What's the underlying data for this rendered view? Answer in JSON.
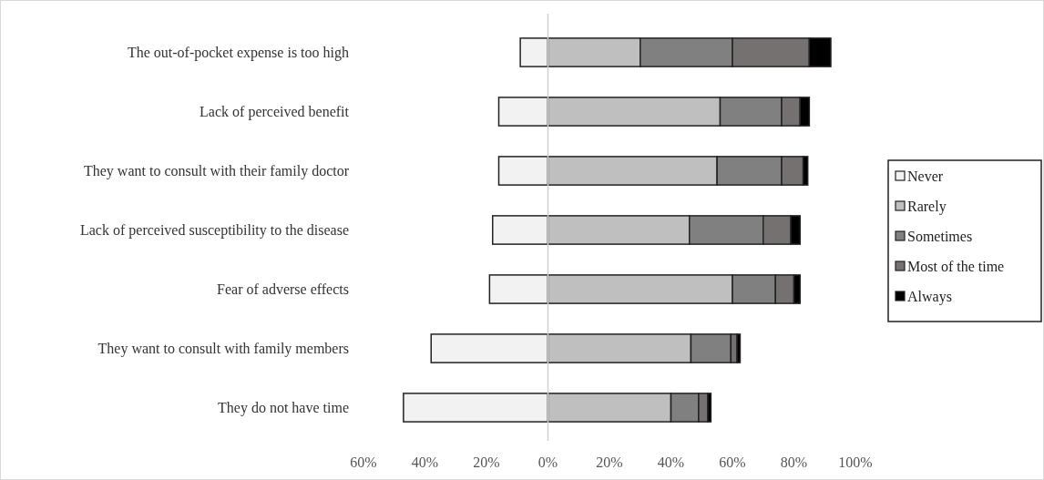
{
  "chart_data": {
    "type": "bar",
    "orientation": "horizontal",
    "stacked": true,
    "categories": [
      "The out-of-pocket expense is too high",
      "Lack of perceived benefit",
      "They want to consult with their family doctor",
      "Lack of perceived susceptibility to the disease",
      "Fear of adverse effects",
      "They want to consult with family members",
      "They do not have time"
    ],
    "series": [
      {
        "name": "Never",
        "color": "#f2f2f2",
        "values": [
          -9,
          -16,
          -16,
          -18,
          -19,
          -38,
          -47
        ]
      },
      {
        "name": "Rarely",
        "color": "#bfbfbf",
        "values": [
          30,
          56,
          55,
          46,
          60,
          46.5,
          40
        ]
      },
      {
        "name": "Sometimes",
        "color": "#808080",
        "values": [
          30,
          20,
          21,
          24,
          14,
          13,
          9
        ]
      },
      {
        "name": "Most of the time",
        "color": "#767171",
        "values": [
          25,
          6,
          7,
          9,
          6,
          2,
          3
        ]
      },
      {
        "name": "Always",
        "color": "#000000",
        "values": [
          7,
          3,
          1.5,
          3,
          2,
          1,
          1
        ]
      }
    ],
    "xlim": [
      -60,
      100
    ],
    "xticks": [
      {
        "value": -60,
        "label": "60%"
      },
      {
        "value": -40,
        "label": "40%"
      },
      {
        "value": -20,
        "label": "20%"
      },
      {
        "value": 0,
        "label": "0%"
      },
      {
        "value": 20,
        "label": "20%"
      },
      {
        "value": 40,
        "label": "40%"
      },
      {
        "value": 60,
        "label": "60%"
      },
      {
        "value": 80,
        "label": "80%"
      },
      {
        "value": 100,
        "label": "100%"
      }
    ],
    "legend": "right"
  }
}
